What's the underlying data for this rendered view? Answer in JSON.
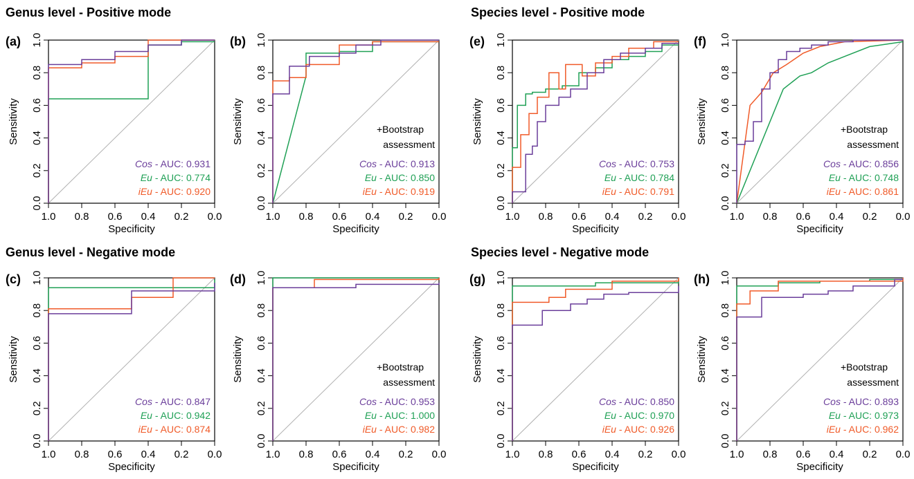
{
  "headings": [
    "Genus level - Positive mode",
    "Species level - Positive mode",
    "Genus level - Negative mode",
    "Species level - Negative mode"
  ],
  "colors": {
    "Cos": "#6a3d9a",
    "Eu": "#1fa055",
    "iEu": "#f05a28",
    "diagonal": "#b0b0b0",
    "axis": "#000000"
  },
  "chart_data": [
    {
      "panel": "(a)",
      "type": "line",
      "xlabel": "Specificity",
      "ylabel": "Sensitivity",
      "xlim": [
        1.0,
        0.0
      ],
      "ylim": [
        0.0,
        1.0
      ],
      "xticks": [
        "1.0",
        "0.8",
        "0.6",
        "0.4",
        "0.2",
        "0.0"
      ],
      "yticks": [
        "0.0",
        "0.2",
        "0.4",
        "0.6",
        "0.8",
        "1.0"
      ],
      "note": [],
      "series": [
        {
          "name": "Cos",
          "auc_label": "AUC: 0.931",
          "x": [
            1.0,
            1.0,
            0.8,
            0.8,
            0.6,
            0.6,
            0.4,
            0.4,
            0.2,
            0.2,
            0.0
          ],
          "y": [
            0.0,
            0.85,
            0.85,
            0.88,
            0.88,
            0.93,
            0.93,
            0.97,
            0.97,
            1.0,
            1.0
          ]
        },
        {
          "name": "Eu",
          "auc_label": "AUC: 0.774",
          "x": [
            1.0,
            1.0,
            0.4,
            0.4,
            0.2,
            0.2,
            0.0
          ],
          "y": [
            0.0,
            0.64,
            0.64,
            0.97,
            0.97,
            0.99,
            0.99
          ]
        },
        {
          "name": "iEu",
          "auc_label": "AUC: 0.920",
          "x": [
            1.0,
            1.0,
            0.8,
            0.8,
            0.6,
            0.6,
            0.4,
            0.4,
            0.0
          ],
          "y": [
            0.0,
            0.83,
            0.83,
            0.86,
            0.86,
            0.9,
            0.9,
            1.0,
            1.0
          ]
        }
      ]
    },
    {
      "panel": "(b)",
      "type": "line",
      "xlabel": "Specificity",
      "ylabel": "Sensitivity",
      "xlim": [
        1.0,
        0.0
      ],
      "ylim": [
        0.0,
        1.0
      ],
      "xticks": [
        "1.0",
        "0.8",
        "0.6",
        "0.4",
        "0.2",
        "0.0"
      ],
      "yticks": [
        "0.0",
        "0.2",
        "0.4",
        "0.6",
        "0.8",
        "1.0"
      ],
      "note": [
        "+Bootstrap",
        "assessment"
      ],
      "series": [
        {
          "name": "Cos",
          "auc_label": "AUC: 0.913",
          "x": [
            1.0,
            1.0,
            0.9,
            0.9,
            0.78,
            0.78,
            0.6,
            0.6,
            0.5,
            0.5,
            0.35,
            0.35,
            0.0
          ],
          "y": [
            0.0,
            0.67,
            0.67,
            0.84,
            0.84,
            0.9,
            0.9,
            0.92,
            0.92,
            0.97,
            0.97,
            1.0,
            1.0
          ]
        },
        {
          "name": "Eu",
          "auc_label": "AUC: 0.850",
          "x": [
            1.0,
            0.8,
            0.8,
            0.6,
            0.6,
            0.4,
            0.4,
            0.0
          ],
          "y": [
            0.0,
            0.78,
            0.92,
            0.92,
            0.93,
            0.93,
            0.99,
            0.99
          ]
        },
        {
          "name": "iEu",
          "auc_label": "AUC: 0.919",
          "x": [
            1.0,
            1.0,
            0.9,
            0.9,
            0.8,
            0.8,
            0.6,
            0.6,
            0.4,
            0.4,
            0.0
          ],
          "y": [
            0.0,
            0.75,
            0.75,
            0.77,
            0.77,
            0.85,
            0.85,
            0.97,
            0.97,
            0.99,
            0.99
          ]
        }
      ]
    },
    {
      "panel": "(e)",
      "type": "line",
      "xlabel": "Specificity",
      "ylabel": "Sensitivity",
      "xlim": [
        1.0,
        0.0
      ],
      "ylim": [
        0.0,
        1.0
      ],
      "xticks": [
        "1.0",
        "0.8",
        "0.6",
        "0.4",
        "0.2",
        "0.0"
      ],
      "yticks": [
        "0.0",
        "0.2",
        "0.4",
        "0.6",
        "0.8",
        "1.0"
      ],
      "note": [],
      "series": [
        {
          "name": "Cos",
          "auc_label": "AUC: 0.753",
          "x": [
            1.0,
            1.0,
            0.92,
            0.92,
            0.88,
            0.88,
            0.85,
            0.85,
            0.8,
            0.8,
            0.72,
            0.72,
            0.65,
            0.65,
            0.55,
            0.55,
            0.45,
            0.45,
            0.35,
            0.35,
            0.2,
            0.2,
            0.1,
            0.1,
            0.0
          ],
          "y": [
            0.0,
            0.07,
            0.07,
            0.3,
            0.3,
            0.35,
            0.35,
            0.5,
            0.5,
            0.6,
            0.6,
            0.65,
            0.65,
            0.7,
            0.7,
            0.8,
            0.8,
            0.88,
            0.88,
            0.92,
            0.92,
            0.95,
            0.95,
            0.98,
            0.98
          ]
        },
        {
          "name": "Eu",
          "auc_label": "AUC: 0.784",
          "x": [
            1.0,
            1.0,
            0.97,
            0.97,
            0.92,
            0.92,
            0.88,
            0.88,
            0.8,
            0.8,
            0.7,
            0.7,
            0.6,
            0.6,
            0.5,
            0.5,
            0.4,
            0.4,
            0.3,
            0.3,
            0.2,
            0.2,
            0.1,
            0.1,
            0.0
          ],
          "y": [
            0.0,
            0.34,
            0.34,
            0.6,
            0.6,
            0.67,
            0.67,
            0.68,
            0.68,
            0.7,
            0.7,
            0.72,
            0.72,
            0.8,
            0.8,
            0.83,
            0.83,
            0.88,
            0.88,
            0.9,
            0.9,
            0.93,
            0.93,
            0.97,
            0.97
          ]
        },
        {
          "name": "iEu",
          "auc_label": "AUC: 0.791",
          "x": [
            1.0,
            1.0,
            0.95,
            0.95,
            0.9,
            0.9,
            0.85,
            0.85,
            0.78,
            0.78,
            0.72,
            0.72,
            0.68,
            0.68,
            0.58,
            0.58,
            0.5,
            0.5,
            0.4,
            0.4,
            0.3,
            0.3,
            0.15,
            0.15,
            0.0
          ],
          "y": [
            0.0,
            0.22,
            0.22,
            0.42,
            0.42,
            0.55,
            0.55,
            0.65,
            0.65,
            0.8,
            0.8,
            0.7,
            0.7,
            0.85,
            0.85,
            0.78,
            0.78,
            0.86,
            0.86,
            0.9,
            0.9,
            0.95,
            0.95,
            0.99,
            0.99
          ]
        }
      ]
    },
    {
      "panel": "(f)",
      "type": "line",
      "xlabel": "Specificity",
      "ylabel": "Sensitivity",
      "xlim": [
        1.0,
        0.0
      ],
      "ylim": [
        0.0,
        1.0
      ],
      "xticks": [
        "1.0",
        "0.8",
        "0.6",
        "0.4",
        "0.2",
        "0.0"
      ],
      "yticks": [
        "0.0",
        "0.2",
        "0.4",
        "0.6",
        "0.8",
        "1.0"
      ],
      "note": [
        "+Bootstrap",
        "assessment"
      ],
      "series": [
        {
          "name": "Cos",
          "auc_label": "AUC: 0.856",
          "x": [
            1.0,
            1.0,
            0.95,
            0.95,
            0.9,
            0.9,
            0.85,
            0.85,
            0.8,
            0.8,
            0.75,
            0.75,
            0.7,
            0.7,
            0.62,
            0.62,
            0.55,
            0.55,
            0.45,
            0.45,
            0.3,
            0.3,
            0.0
          ],
          "y": [
            0.0,
            0.36,
            0.36,
            0.38,
            0.38,
            0.5,
            0.5,
            0.7,
            0.7,
            0.8,
            0.8,
            0.88,
            0.88,
            0.93,
            0.93,
            0.95,
            0.95,
            0.97,
            0.97,
            0.99,
            0.99,
            1.0,
            1.0
          ]
        },
        {
          "name": "Eu",
          "auc_label": "AUC: 0.748",
          "x": [
            1.0,
            0.72,
            0.72,
            0.62,
            0.62,
            0.55,
            0.55,
            0.45,
            0.45,
            0.35,
            0.35,
            0.2,
            0.2,
            0.0
          ],
          "y": [
            0.0,
            0.7,
            0.7,
            0.78,
            0.78,
            0.8,
            0.8,
            0.86,
            0.86,
            0.9,
            0.9,
            0.96,
            0.96,
            0.99
          ]
        },
        {
          "name": "iEu",
          "auc_label": "AUC: 0.861",
          "x": [
            1.0,
            0.92,
            0.92,
            0.85,
            0.85,
            0.78,
            0.78,
            0.7,
            0.7,
            0.6,
            0.6,
            0.5,
            0.5,
            0.35,
            0.35,
            0.0
          ],
          "y": [
            0.0,
            0.6,
            0.6,
            0.68,
            0.68,
            0.8,
            0.8,
            0.85,
            0.85,
            0.92,
            0.92,
            0.96,
            0.96,
            0.99,
            0.99,
            1.0
          ]
        }
      ]
    },
    {
      "panel": "(c)",
      "type": "line",
      "xlabel": "Specificity",
      "ylabel": "Sensitivity",
      "xlim": [
        1.0,
        0.0
      ],
      "ylim": [
        0.0,
        1.0
      ],
      "xticks": [
        "1.0",
        "0.8",
        "0.6",
        "0.4",
        "0.2",
        "0.0"
      ],
      "yticks": [
        "0.0",
        "0.2",
        "0.4",
        "0.6",
        "0.8",
        "1.0"
      ],
      "note": [],
      "series": [
        {
          "name": "Cos",
          "auc_label": "AUC: 0.847",
          "x": [
            1.0,
            1.0,
            0.5,
            0.5,
            0.0,
            0.0
          ],
          "y": [
            0.0,
            0.78,
            0.78,
            0.92,
            0.92,
            0.97
          ]
        },
        {
          "name": "Eu",
          "auc_label": "AUC: 0.942",
          "x": [
            1.0,
            1.0,
            0.0,
            0.0
          ],
          "y": [
            0.0,
            0.94,
            0.94,
            0.99
          ]
        },
        {
          "name": "iEu",
          "auc_label": "AUC: 0.874",
          "x": [
            1.0,
            1.0,
            0.5,
            0.5,
            0.25,
            0.25,
            0.0
          ],
          "y": [
            0.0,
            0.81,
            0.81,
            0.88,
            0.88,
            1.0,
            1.0
          ]
        }
      ]
    },
    {
      "panel": "(d)",
      "type": "line",
      "xlabel": "Specificity",
      "ylabel": "Sensitivity",
      "xlim": [
        1.0,
        0.0
      ],
      "ylim": [
        0.0,
        1.0
      ],
      "xticks": [
        "1.0",
        "0.8",
        "0.6",
        "0.4",
        "0.2",
        "0.0"
      ],
      "yticks": [
        "0.0",
        "0.2",
        "0.4",
        "0.6",
        "0.8",
        "1.0"
      ],
      "note": [
        "+Bootstrap",
        "assessment"
      ],
      "series": [
        {
          "name": "Cos",
          "auc_label": "AUC: 0.953",
          "x": [
            1.0,
            1.0,
            0.5,
            0.5,
            0.0,
            0.0
          ],
          "y": [
            0.0,
            0.94,
            0.94,
            0.96,
            0.96,
            0.97
          ]
        },
        {
          "name": "Eu",
          "auc_label": "AUC: 1.000",
          "x": [
            1.0,
            1.0,
            0.0
          ],
          "y": [
            0.0,
            1.0,
            1.0
          ]
        },
        {
          "name": "iEu",
          "auc_label": "AUC: 0.982",
          "x": [
            1.0,
            1.0,
            0.75,
            0.75,
            0.0,
            0.0
          ],
          "y": [
            0.0,
            0.94,
            0.94,
            0.99,
            0.99,
            1.0
          ]
        }
      ]
    },
    {
      "panel": "(g)",
      "type": "line",
      "xlabel": "Specificity",
      "ylabel": "Sensitivity",
      "xlim": [
        1.0,
        0.0
      ],
      "ylim": [
        0.0,
        1.0
      ],
      "xticks": [
        "1.0",
        "0.8",
        "0.6",
        "0.4",
        "0.2",
        "0.0"
      ],
      "yticks": [
        "0.0",
        "0.2",
        "0.4",
        "0.6",
        "0.8",
        "1.0"
      ],
      "note": [],
      "series": [
        {
          "name": "Cos",
          "auc_label": "AUC: 0.850",
          "x": [
            1.0,
            1.0,
            0.82,
            0.82,
            0.65,
            0.65,
            0.55,
            0.55,
            0.45,
            0.45,
            0.3,
            0.3,
            0.0,
            0.0
          ],
          "y": [
            0.0,
            0.71,
            0.71,
            0.8,
            0.8,
            0.84,
            0.84,
            0.87,
            0.87,
            0.9,
            0.9,
            0.91,
            0.91,
            0.95
          ]
        },
        {
          "name": "Eu",
          "auc_label": "AUC: 0.970",
          "x": [
            1.0,
            1.0,
            0.5,
            0.5,
            0.0,
            0.0
          ],
          "y": [
            0.0,
            0.95,
            0.95,
            0.97,
            0.97,
            0.99
          ]
        },
        {
          "name": "iEu",
          "auc_label": "AUC: 0.926",
          "x": [
            1.0,
            1.0,
            0.78,
            0.78,
            0.68,
            0.68,
            0.4,
            0.4,
            0.0,
            0.0
          ],
          "y": [
            0.0,
            0.85,
            0.85,
            0.88,
            0.88,
            0.93,
            0.93,
            0.98,
            0.98,
            1.0
          ]
        }
      ]
    },
    {
      "panel": "(h)",
      "type": "line",
      "xlabel": "Specificity",
      "ylabel": "Sensitivity",
      "xlim": [
        1.0,
        0.0
      ],
      "ylim": [
        0.0,
        1.0
      ],
      "xticks": [
        "1.0",
        "0.8",
        "0.6",
        "0.4",
        "0.2",
        "0.0"
      ],
      "yticks": [
        "0.0",
        "0.2",
        "0.4",
        "0.6",
        "0.8",
        "1.0"
      ],
      "note": [
        "+Bootstrap",
        "assessment"
      ],
      "series": [
        {
          "name": "Cos",
          "auc_label": "AUC: 0.893",
          "x": [
            1.0,
            1.0,
            0.85,
            0.85,
            0.6,
            0.6,
            0.45,
            0.45,
            0.3,
            0.3,
            0.05,
            0.05,
            0.0
          ],
          "y": [
            0.0,
            0.76,
            0.76,
            0.88,
            0.88,
            0.9,
            0.9,
            0.92,
            0.92,
            0.95,
            0.95,
            0.99,
            0.99
          ]
        },
        {
          "name": "Eu",
          "auc_label": "AUC: 0.973",
          "x": [
            1.0,
            1.0,
            0.75,
            0.75,
            0.5,
            0.5,
            0.2,
            0.2,
            0.0
          ],
          "y": [
            0.0,
            0.95,
            0.95,
            0.97,
            0.97,
            0.98,
            0.98,
            0.99,
            0.99
          ]
        },
        {
          "name": "iEu",
          "auc_label": "AUC: 0.962",
          "x": [
            1.0,
            1.0,
            0.92,
            0.92,
            0.75,
            0.75,
            0.0,
            0.0
          ],
          "y": [
            0.0,
            0.84,
            0.84,
            0.92,
            0.92,
            0.98,
            0.98,
            1.0
          ]
        }
      ]
    }
  ]
}
